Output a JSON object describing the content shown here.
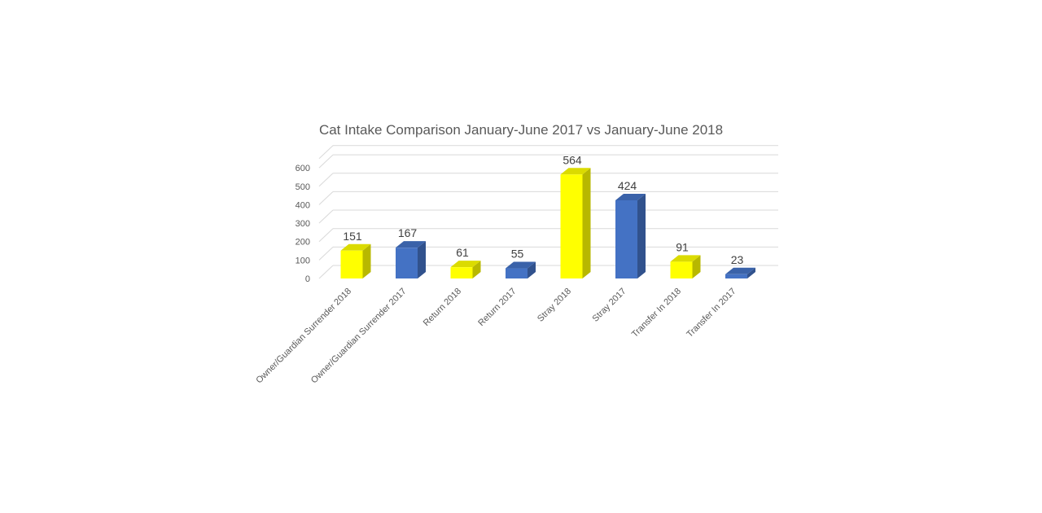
{
  "chart_data": {
    "type": "bar",
    "title": "Cat Intake Comparison January-June 2017 vs January-June 2018",
    "categories": [
      "Owner/Guardian Surrender 2018",
      "Owner/Guardian Surrender 2017",
      "Return 2018",
      "Return 2017",
      "Stray 2018",
      "Stray 2017",
      "Transfer In 2018",
      "Transfer In 2017"
    ],
    "values": [
      151,
      167,
      61,
      55,
      564,
      424,
      91,
      23
    ],
    "bar_colors": [
      "#FFFF00",
      "#4472C4",
      "#FFFF00",
      "#4472C4",
      "#FFFF00",
      "#4472C4",
      "#FFFF00",
      "#4472C4"
    ],
    "yticks": [
      0,
      100,
      200,
      300,
      400,
      500,
      600
    ],
    "ylim": [
      0,
      650
    ],
    "xlabel": "",
    "ylabel": "",
    "grid": true,
    "legend": "none",
    "style": "3d-column",
    "colors": {
      "yellow": "#FFFF00",
      "blue": "#4472C4",
      "gridline": "#D9D9D9",
      "tick_text": "#595959",
      "data_label_text": "#404040"
    }
  }
}
